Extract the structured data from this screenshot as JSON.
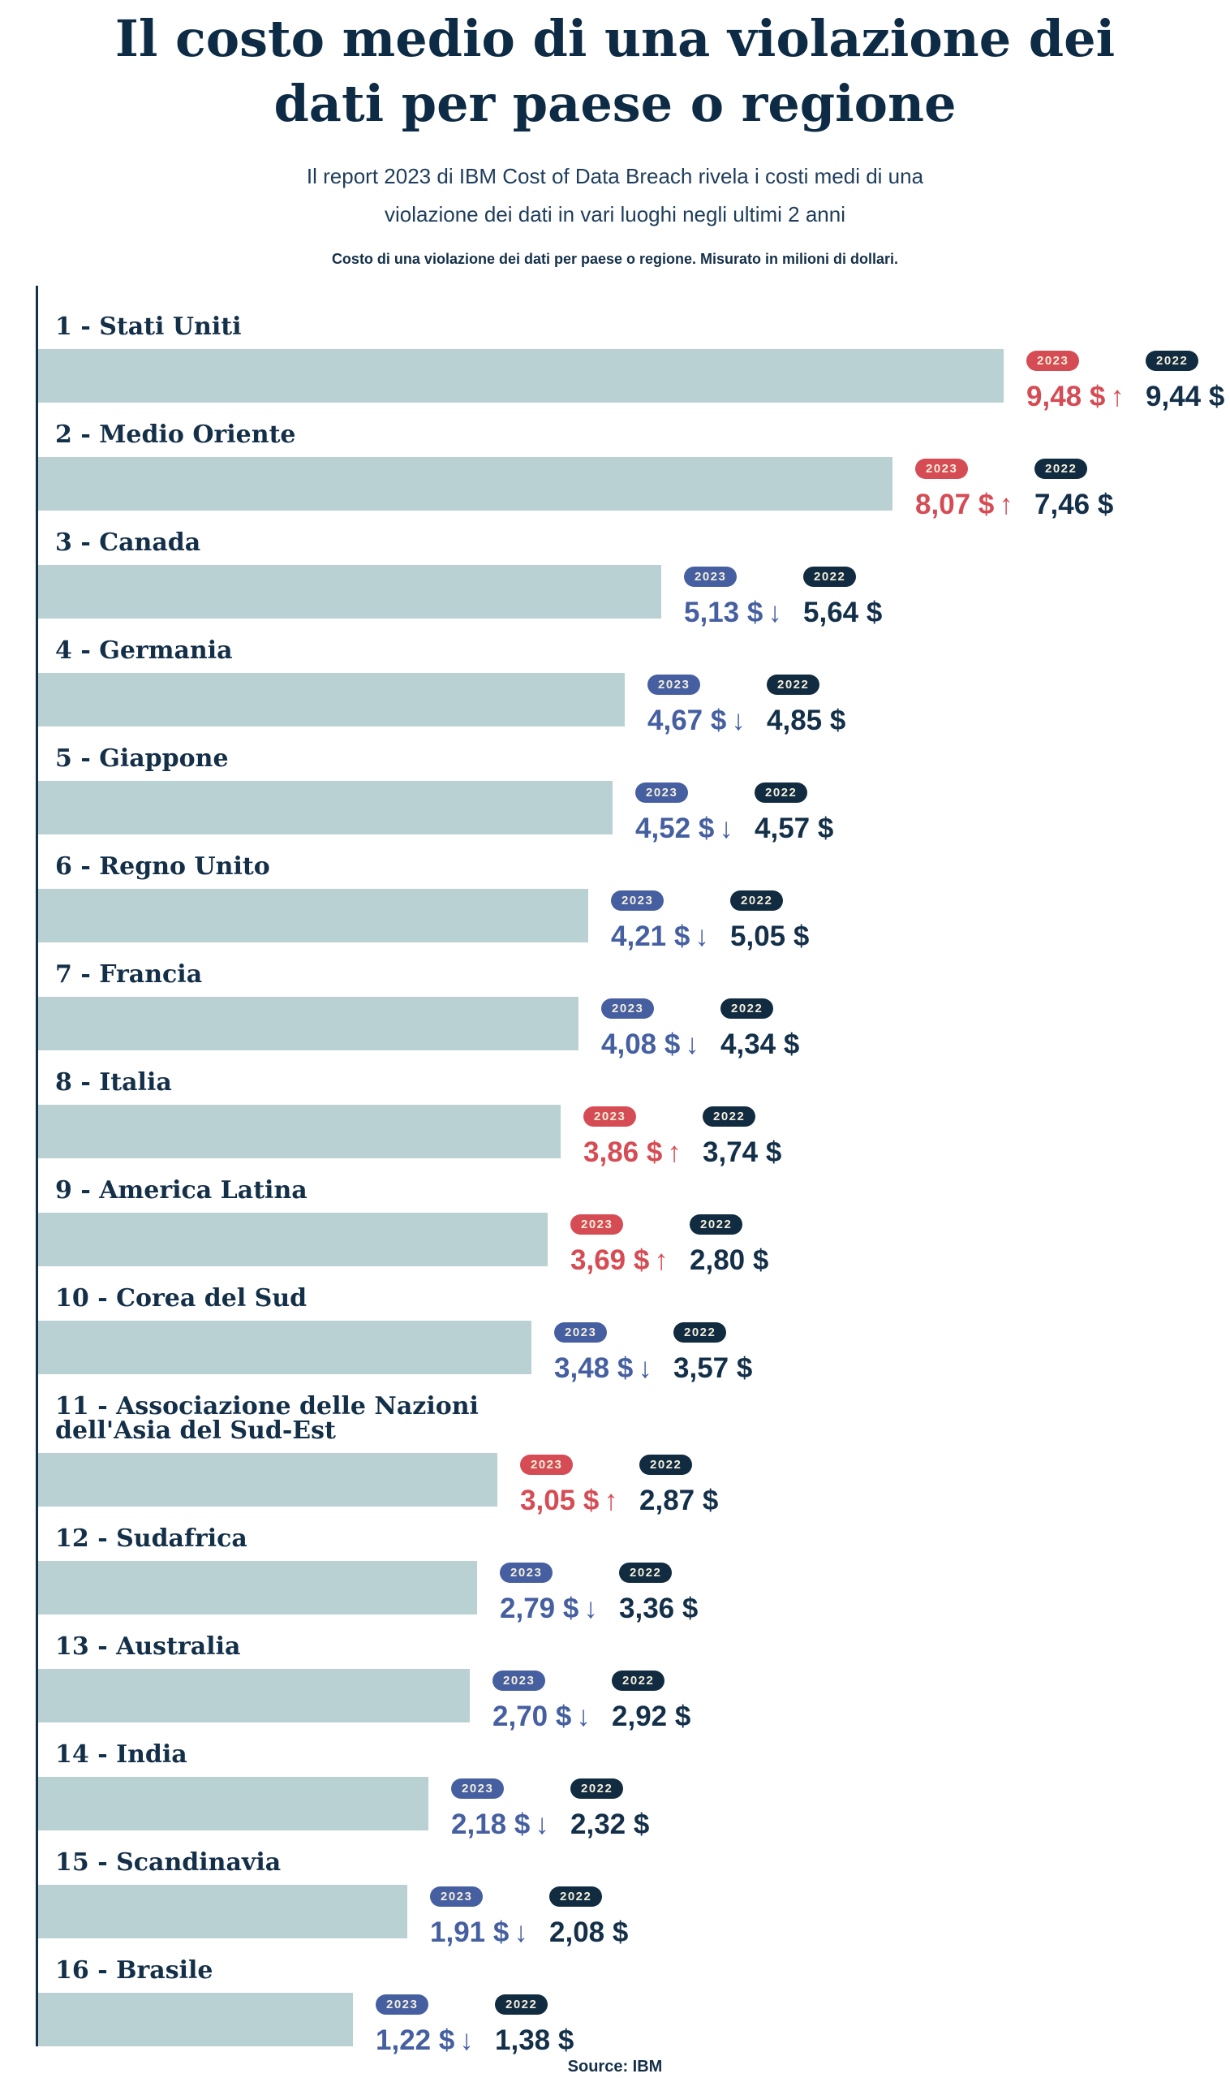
{
  "title": "Il costo medio di una violazione dei dati per paese o regione",
  "subtitle": "Il report 2023 di IBM Cost of Data Breach rivela i costi medi di una violazione dei dati in vari luoghi negli ultimi 2 anni",
  "caption": "Costo di una violazione dei dati per paese o regione. Misurato in milioni di dollari.",
  "source": "Source: IBM",
  "glyphs": {
    "up_arrow": "↑",
    "down_arrow": "↓"
  },
  "colors": {
    "red": "#D64C54",
    "blue": "#455FA0",
    "navy": "#112B40",
    "navy-text": "#143049",
    "title": "#0D2B44",
    "subtitle": "#1E3D5C",
    "bar": "#B9D1D3",
    "cream": "#F5EEDC",
    "axis": "#16314B",
    "bg": "#FFFFFF"
  },
  "chart_data": {
    "type": "bar",
    "orientation": "horizontal",
    "value_unit": "milioni di dollari ($)",
    "legend": [
      "2023",
      "2022"
    ],
    "legend_position": "right-of-bar",
    "grid": false,
    "xlim": [
      0,
      9.48
    ],
    "categories": [
      "1 - Stati Uniti",
      "2 - Medio Oriente",
      "3 - Canada",
      "4 - Germania",
      "5 - Giappone",
      "6 - Regno Unito",
      "7 - Francia",
      "8 - Italia",
      "9 - America Latina",
      "10 - Corea del Sud",
      "11 - Associazione delle Nazioni dell'Asia del Sud-Est",
      "12 - Sudafrica",
      "13 - Australia",
      "14 - India",
      "15 - Scandinavia",
      "16 - Brasile"
    ],
    "series": [
      {
        "name": "2023",
        "values": [
          9.48,
          8.07,
          5.13,
          4.67,
          4.52,
          4.21,
          4.08,
          3.86,
          3.69,
          3.48,
          3.05,
          2.79,
          2.7,
          2.18,
          1.91,
          1.22
        ]
      },
      {
        "name": "2022",
        "values": [
          9.44,
          7.46,
          5.64,
          4.85,
          4.57,
          5.05,
          4.34,
          3.74,
          2.8,
          3.57,
          2.87,
          3.36,
          2.92,
          2.32,
          2.08,
          1.38
        ]
      }
    ],
    "rows": [
      {
        "rank": 1,
        "label": "1 - Stati Uniti",
        "y2023": 9.48,
        "y2022": 9.44,
        "display_2023": "9,48 $",
        "display_2022": "9,44 $",
        "trend": "up"
      },
      {
        "rank": 2,
        "label": "2 - Medio Oriente",
        "y2023": 8.07,
        "y2022": 7.46,
        "display_2023": "8,07 $",
        "display_2022": "7,46 $",
        "trend": "up"
      },
      {
        "rank": 3,
        "label": "3 - Canada",
        "y2023": 5.13,
        "y2022": 5.64,
        "display_2023": "5,13 $",
        "display_2022": "5,64 $",
        "trend": "down"
      },
      {
        "rank": 4,
        "label": "4 - Germania",
        "y2023": 4.67,
        "y2022": 4.85,
        "display_2023": "4,67 $",
        "display_2022": "4,85 $",
        "trend": "down"
      },
      {
        "rank": 5,
        "label": "5 - Giappone",
        "y2023": 4.52,
        "y2022": 4.57,
        "display_2023": "4,52 $",
        "display_2022": "4,57 $",
        "trend": "down"
      },
      {
        "rank": 6,
        "label": "6 - Regno Unito",
        "y2023": 4.21,
        "y2022": 5.05,
        "display_2023": "4,21 $",
        "display_2022": "5,05 $",
        "trend": "down"
      },
      {
        "rank": 7,
        "label": "7 - Francia",
        "y2023": 4.08,
        "y2022": 4.34,
        "display_2023": "4,08 $",
        "display_2022": "4,34 $",
        "trend": "down"
      },
      {
        "rank": 8,
        "label": "8 - Italia",
        "y2023": 3.86,
        "y2022": 3.74,
        "display_2023": "3,86 $",
        "display_2022": "3,74 $",
        "trend": "up"
      },
      {
        "rank": 9,
        "label": "9 - America Latina",
        "y2023": 3.69,
        "y2022": 2.8,
        "display_2023": "3,69 $",
        "display_2022": "2,80 $",
        "trend": "up"
      },
      {
        "rank": 10,
        "label": "10 - Corea del Sud",
        "y2023": 3.48,
        "y2022": 3.57,
        "display_2023": "3,48 $",
        "display_2022": "3,57 $",
        "trend": "down"
      },
      {
        "rank": 11,
        "label": "11 - Associazione delle Nazioni dell'Asia del Sud-Est",
        "y2023": 3.05,
        "y2022": 2.87,
        "display_2023": "3,05 $",
        "display_2022": "2,87 $",
        "trend": "up"
      },
      {
        "rank": 12,
        "label": "12 - Sudafrica",
        "y2023": 2.79,
        "y2022": 3.36,
        "display_2023": "2,79 $",
        "display_2022": "3,36 $",
        "trend": "down"
      },
      {
        "rank": 13,
        "label": "13 - Australia",
        "y2023": 2.7,
        "y2022": 2.92,
        "display_2023": "2,70 $",
        "display_2022": "2,92 $",
        "trend": "down"
      },
      {
        "rank": 14,
        "label": "14 - India",
        "y2023": 2.18,
        "y2022": 2.32,
        "display_2023": "2,18 $",
        "display_2022": "2,32 $",
        "trend": "down"
      },
      {
        "rank": 15,
        "label": "15 - Scandinavia",
        "y2023": 1.91,
        "y2022": 2.08,
        "display_2023": "1,91 $",
        "display_2022": "2,08 $",
        "trend": "down"
      },
      {
        "rank": 16,
        "label": "16 - Brasile",
        "y2023": 1.22,
        "y2022": 1.38,
        "display_2023": "1,22 $",
        "display_2022": "1,38 $",
        "trend": "down"
      }
    ]
  }
}
